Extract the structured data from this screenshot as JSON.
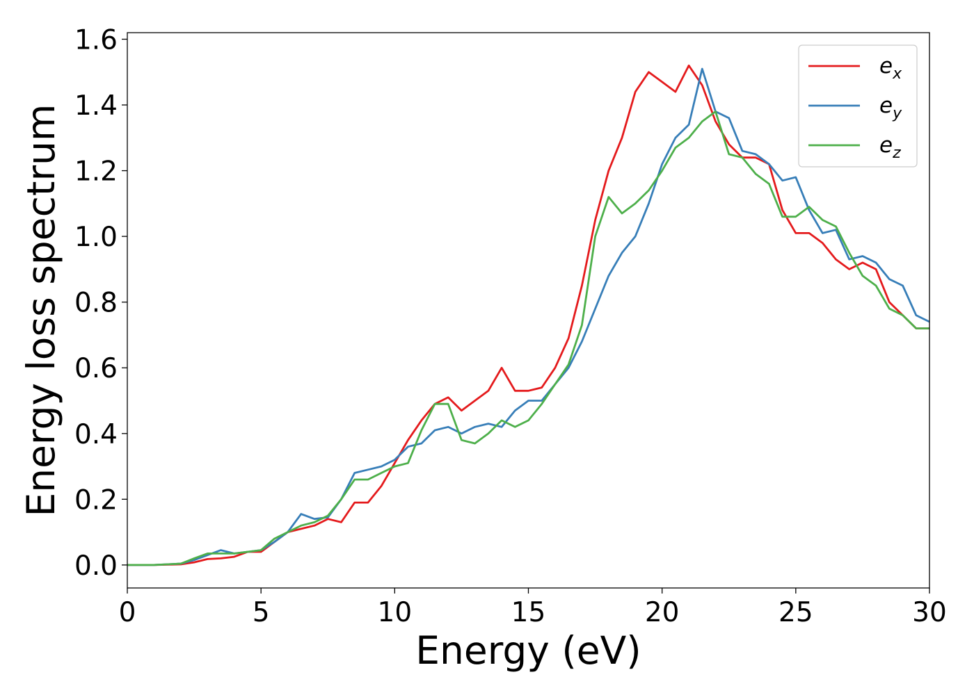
{
  "chart_data": {
    "type": "line",
    "title": "",
    "xlabel": "Energy (eV)",
    "ylabel": "Energy loss spectrum",
    "xlim": [
      0,
      30
    ],
    "ylim": [
      -0.07,
      1.62
    ],
    "xticks": [
      0,
      5,
      10,
      15,
      20,
      25,
      30
    ],
    "xtick_labels": [
      "0",
      "5",
      "10",
      "15",
      "20",
      "25",
      "30"
    ],
    "yticks": [
      0.0,
      0.2,
      0.4,
      0.6,
      0.8,
      1.0,
      1.2,
      1.4,
      1.6
    ],
    "ytick_labels": [
      "0.0",
      "0.2",
      "0.4",
      "0.6",
      "0.8",
      "1.0",
      "1.2",
      "1.4",
      "1.6"
    ],
    "grid": false,
    "legend_position": "top-right",
    "x": [
      0,
      1,
      2,
      2.5,
      3,
      3.5,
      4,
      4.5,
      5,
      5.5,
      6,
      6.5,
      7,
      7.5,
      8,
      8.5,
      9,
      9.5,
      10,
      10.5,
      11,
      11.5,
      12,
      12.5,
      13,
      13.5,
      14,
      14.5,
      15,
      15.5,
      16,
      16.5,
      17,
      17.5,
      18,
      18.5,
      19,
      19.5,
      20,
      20.5,
      21,
      21.5,
      22,
      22.5,
      23,
      23.5,
      24,
      24.5,
      25,
      25.5,
      26,
      26.5,
      27,
      27.5,
      28,
      28.5,
      29,
      29.5,
      30
    ],
    "series": [
      {
        "name": "e",
        "subscript": "x",
        "color": "#e41a1c",
        "values": [
          0.0,
          0.0,
          0.002,
          0.008,
          0.018,
          0.02,
          0.025,
          0.04,
          0.04,
          0.07,
          0.1,
          0.11,
          0.12,
          0.14,
          0.13,
          0.19,
          0.19,
          0.24,
          0.31,
          0.38,
          0.44,
          0.49,
          0.51,
          0.47,
          0.5,
          0.53,
          0.6,
          0.53,
          0.53,
          0.54,
          0.6,
          0.69,
          0.85,
          1.05,
          1.2,
          1.3,
          1.44,
          1.5,
          1.47,
          1.44,
          1.52,
          1.46,
          1.35,
          1.28,
          1.24,
          1.24,
          1.22,
          1.08,
          1.01,
          1.01,
          0.98,
          0.93,
          0.9,
          0.92,
          0.9,
          0.8,
          0.76,
          0.72,
          0.72
        ]
      },
      {
        "name": "e",
        "subscript": "y",
        "color": "#377eb8",
        "values": [
          0.0,
          0.0,
          0.004,
          0.015,
          0.03,
          0.045,
          0.035,
          0.04,
          0.045,
          0.07,
          0.1,
          0.155,
          0.14,
          0.145,
          0.2,
          0.28,
          0.29,
          0.3,
          0.32,
          0.36,
          0.37,
          0.41,
          0.42,
          0.4,
          0.42,
          0.43,
          0.42,
          0.47,
          0.5,
          0.5,
          0.55,
          0.6,
          0.68,
          0.78,
          0.88,
          0.95,
          1.0,
          1.1,
          1.22,
          1.3,
          1.34,
          1.51,
          1.38,
          1.36,
          1.26,
          1.25,
          1.22,
          1.17,
          1.18,
          1.08,
          1.01,
          1.02,
          0.93,
          0.94,
          0.92,
          0.87,
          0.85,
          0.76,
          0.74
        ]
      },
      {
        "name": "e",
        "subscript": "z",
        "color": "#4daf4a",
        "values": [
          0.0,
          0.0,
          0.004,
          0.02,
          0.035,
          0.035,
          0.035,
          0.04,
          0.045,
          0.08,
          0.1,
          0.12,
          0.13,
          0.15,
          0.2,
          0.26,
          0.26,
          0.28,
          0.3,
          0.31,
          0.41,
          0.49,
          0.49,
          0.38,
          0.37,
          0.4,
          0.44,
          0.42,
          0.44,
          0.49,
          0.55,
          0.61,
          0.73,
          1.0,
          1.12,
          1.07,
          1.1,
          1.14,
          1.2,
          1.27,
          1.3,
          1.35,
          1.38,
          1.25,
          1.24,
          1.19,
          1.16,
          1.06,
          1.06,
          1.09,
          1.05,
          1.03,
          0.95,
          0.88,
          0.85,
          0.78,
          0.76,
          0.72,
          0.72
        ]
      }
    ]
  }
}
